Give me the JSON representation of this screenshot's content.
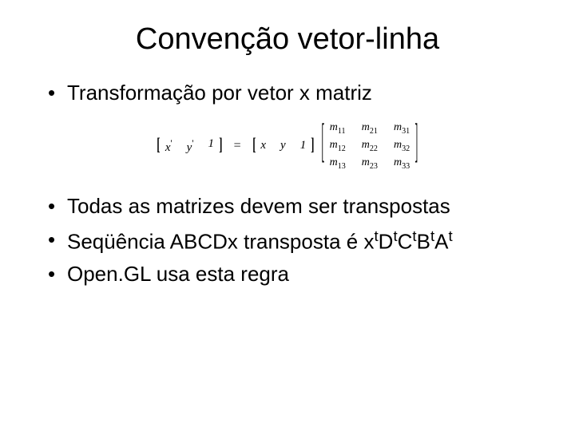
{
  "title": "Convenção vetor-linha",
  "bullets": {
    "b1": "Transformação por vetor x matriz",
    "b2": "Todas as matrizes devem ser transpostas",
    "b3_pre": "Seqüência ABCDx transposta é x",
    "b3_t1": "t",
    "b3_D": "D",
    "b3_t2": "t",
    "b3_C": "C",
    "b3_t3": "t",
    "b3_B": "B",
    "b3_t4": "t",
    "b3_A": "A",
    "b3_t5": "t",
    "b4": "Open.GL usa esta regra"
  },
  "equation": {
    "lhs": {
      "c1": "x",
      "c1p": "'",
      "c2": "y",
      "c2p": "'",
      "c3": "1"
    },
    "eq": "=",
    "rhs_vec": {
      "c1": "x",
      "c2": "y",
      "c3": "1"
    },
    "matrix": {
      "m11": "m",
      "s11": "11",
      "m21": "m",
      "s21": "21",
      "m31": "m",
      "s31": "31",
      "m12": "m",
      "s12": "12",
      "m22": "m",
      "s22": "22",
      "m32": "m",
      "s32": "32",
      "m13": "m",
      "s13": "13",
      "m23": "m",
      "s23": "23",
      "m33": "m",
      "s33": "33"
    }
  }
}
